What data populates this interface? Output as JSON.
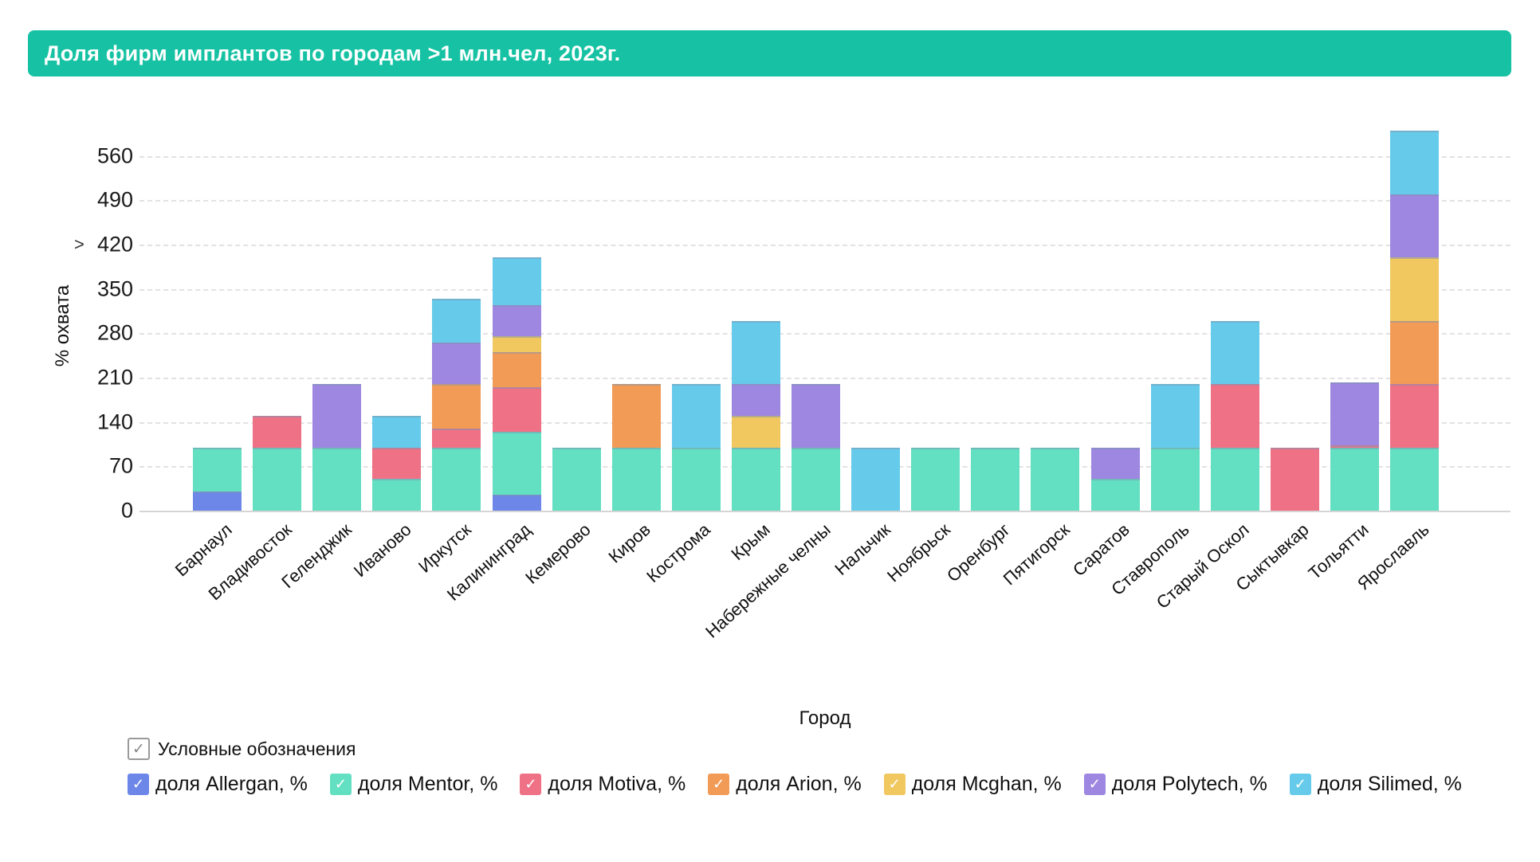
{
  "title": "Доля фирм имплантов по городам >1 млн.чел, 2023г.",
  "colors": {
    "banner": "#16c2a3",
    "grid": "#e2e2e2",
    "axis_line": "#d5d5d5",
    "segment_stroke": "rgba(125,150,175,0.5)",
    "allergan": "#6d87e8",
    "mentor": "#63dfc2",
    "motiva": "#ef7186",
    "arion": "#f29b57",
    "mcghan": "#f1c75f",
    "polytech": "#9d87e0",
    "silimed": "#66cbea"
  },
  "legend": {
    "header": "Условные обозначения",
    "header_check": "✓",
    "item_check": "✓"
  },
  "chart_data": {
    "type": "bar",
    "stacked": true,
    "title": "Доля фирм имплантов по городам >1 млн.чел, 2023г.",
    "xlabel": "Город",
    "ylabel": "% охвата",
    "ylabel_arrow": ">",
    "grid": "horizontal-dashed",
    "legend_position": "bottom",
    "ylim": [
      0,
      620
    ],
    "yticks": [
      0,
      70,
      140,
      210,
      280,
      350,
      420,
      490,
      560
    ],
    "categories": [
      "Барнаул",
      "Владивосток",
      "Геленджик",
      "Иваново",
      "Иркутск",
      "Калининград",
      "Кемерово",
      "Киров",
      "Кострома",
      "Крым",
      "Набережные челны",
      "Нальчик",
      "Ноябрьск",
      "Оренбург",
      "Пятигорск",
      "Саратов",
      "Ставрополь",
      "Старый Оскол",
      "Сыктывкар",
      "Тольятти",
      "Ярославль"
    ],
    "series": [
      {
        "name": "доля Allergan, %",
        "color": "#6d87e8",
        "values": [
          30,
          0,
          0,
          0,
          0,
          25,
          0,
          0,
          0,
          0,
          0,
          0,
          0,
          0,
          0,
          0,
          0,
          0,
          0,
          0,
          0
        ]
      },
      {
        "name": "доля Mentor, %",
        "color": "#63dfc2",
        "values": [
          70,
          100,
          100,
          50,
          100,
          100,
          100,
          100,
          100,
          100,
          100,
          0,
          100,
          100,
          100,
          50,
          100,
          100,
          0,
          100,
          100
        ]
      },
      {
        "name": "доля Motiva, %",
        "color": "#ef7186",
        "values": [
          0,
          50,
          0,
          50,
          30,
          70,
          0,
          0,
          0,
          0,
          0,
          0,
          0,
          0,
          0,
          0,
          0,
          100,
          100,
          3,
          100
        ]
      },
      {
        "name": "доля Arion, %",
        "color": "#f29b57",
        "values": [
          0,
          0,
          0,
          0,
          70,
          55,
          0,
          100,
          0,
          0,
          0,
          0,
          0,
          0,
          0,
          0,
          0,
          0,
          0,
          0,
          100
        ]
      },
      {
        "name": "доля Mcghan, %",
        "color": "#f1c75f",
        "values": [
          0,
          0,
          0,
          0,
          0,
          25,
          0,
          0,
          0,
          50,
          0,
          0,
          0,
          0,
          0,
          0,
          0,
          0,
          0,
          0,
          100
        ]
      },
      {
        "name": "доля Polytech, %",
        "color": "#9d87e0",
        "values": [
          0,
          0,
          100,
          0,
          65,
          50,
          0,
          0,
          0,
          50,
          100,
          0,
          0,
          0,
          0,
          50,
          0,
          0,
          0,
          100,
          100
        ]
      },
      {
        "name": "доля Silimed, %",
        "color": "#66cbea",
        "values": [
          0,
          0,
          0,
          50,
          70,
          75,
          0,
          0,
          100,
          100,
          0,
          100,
          0,
          0,
          0,
          0,
          100,
          100,
          0,
          0,
          100
        ]
      }
    ]
  }
}
